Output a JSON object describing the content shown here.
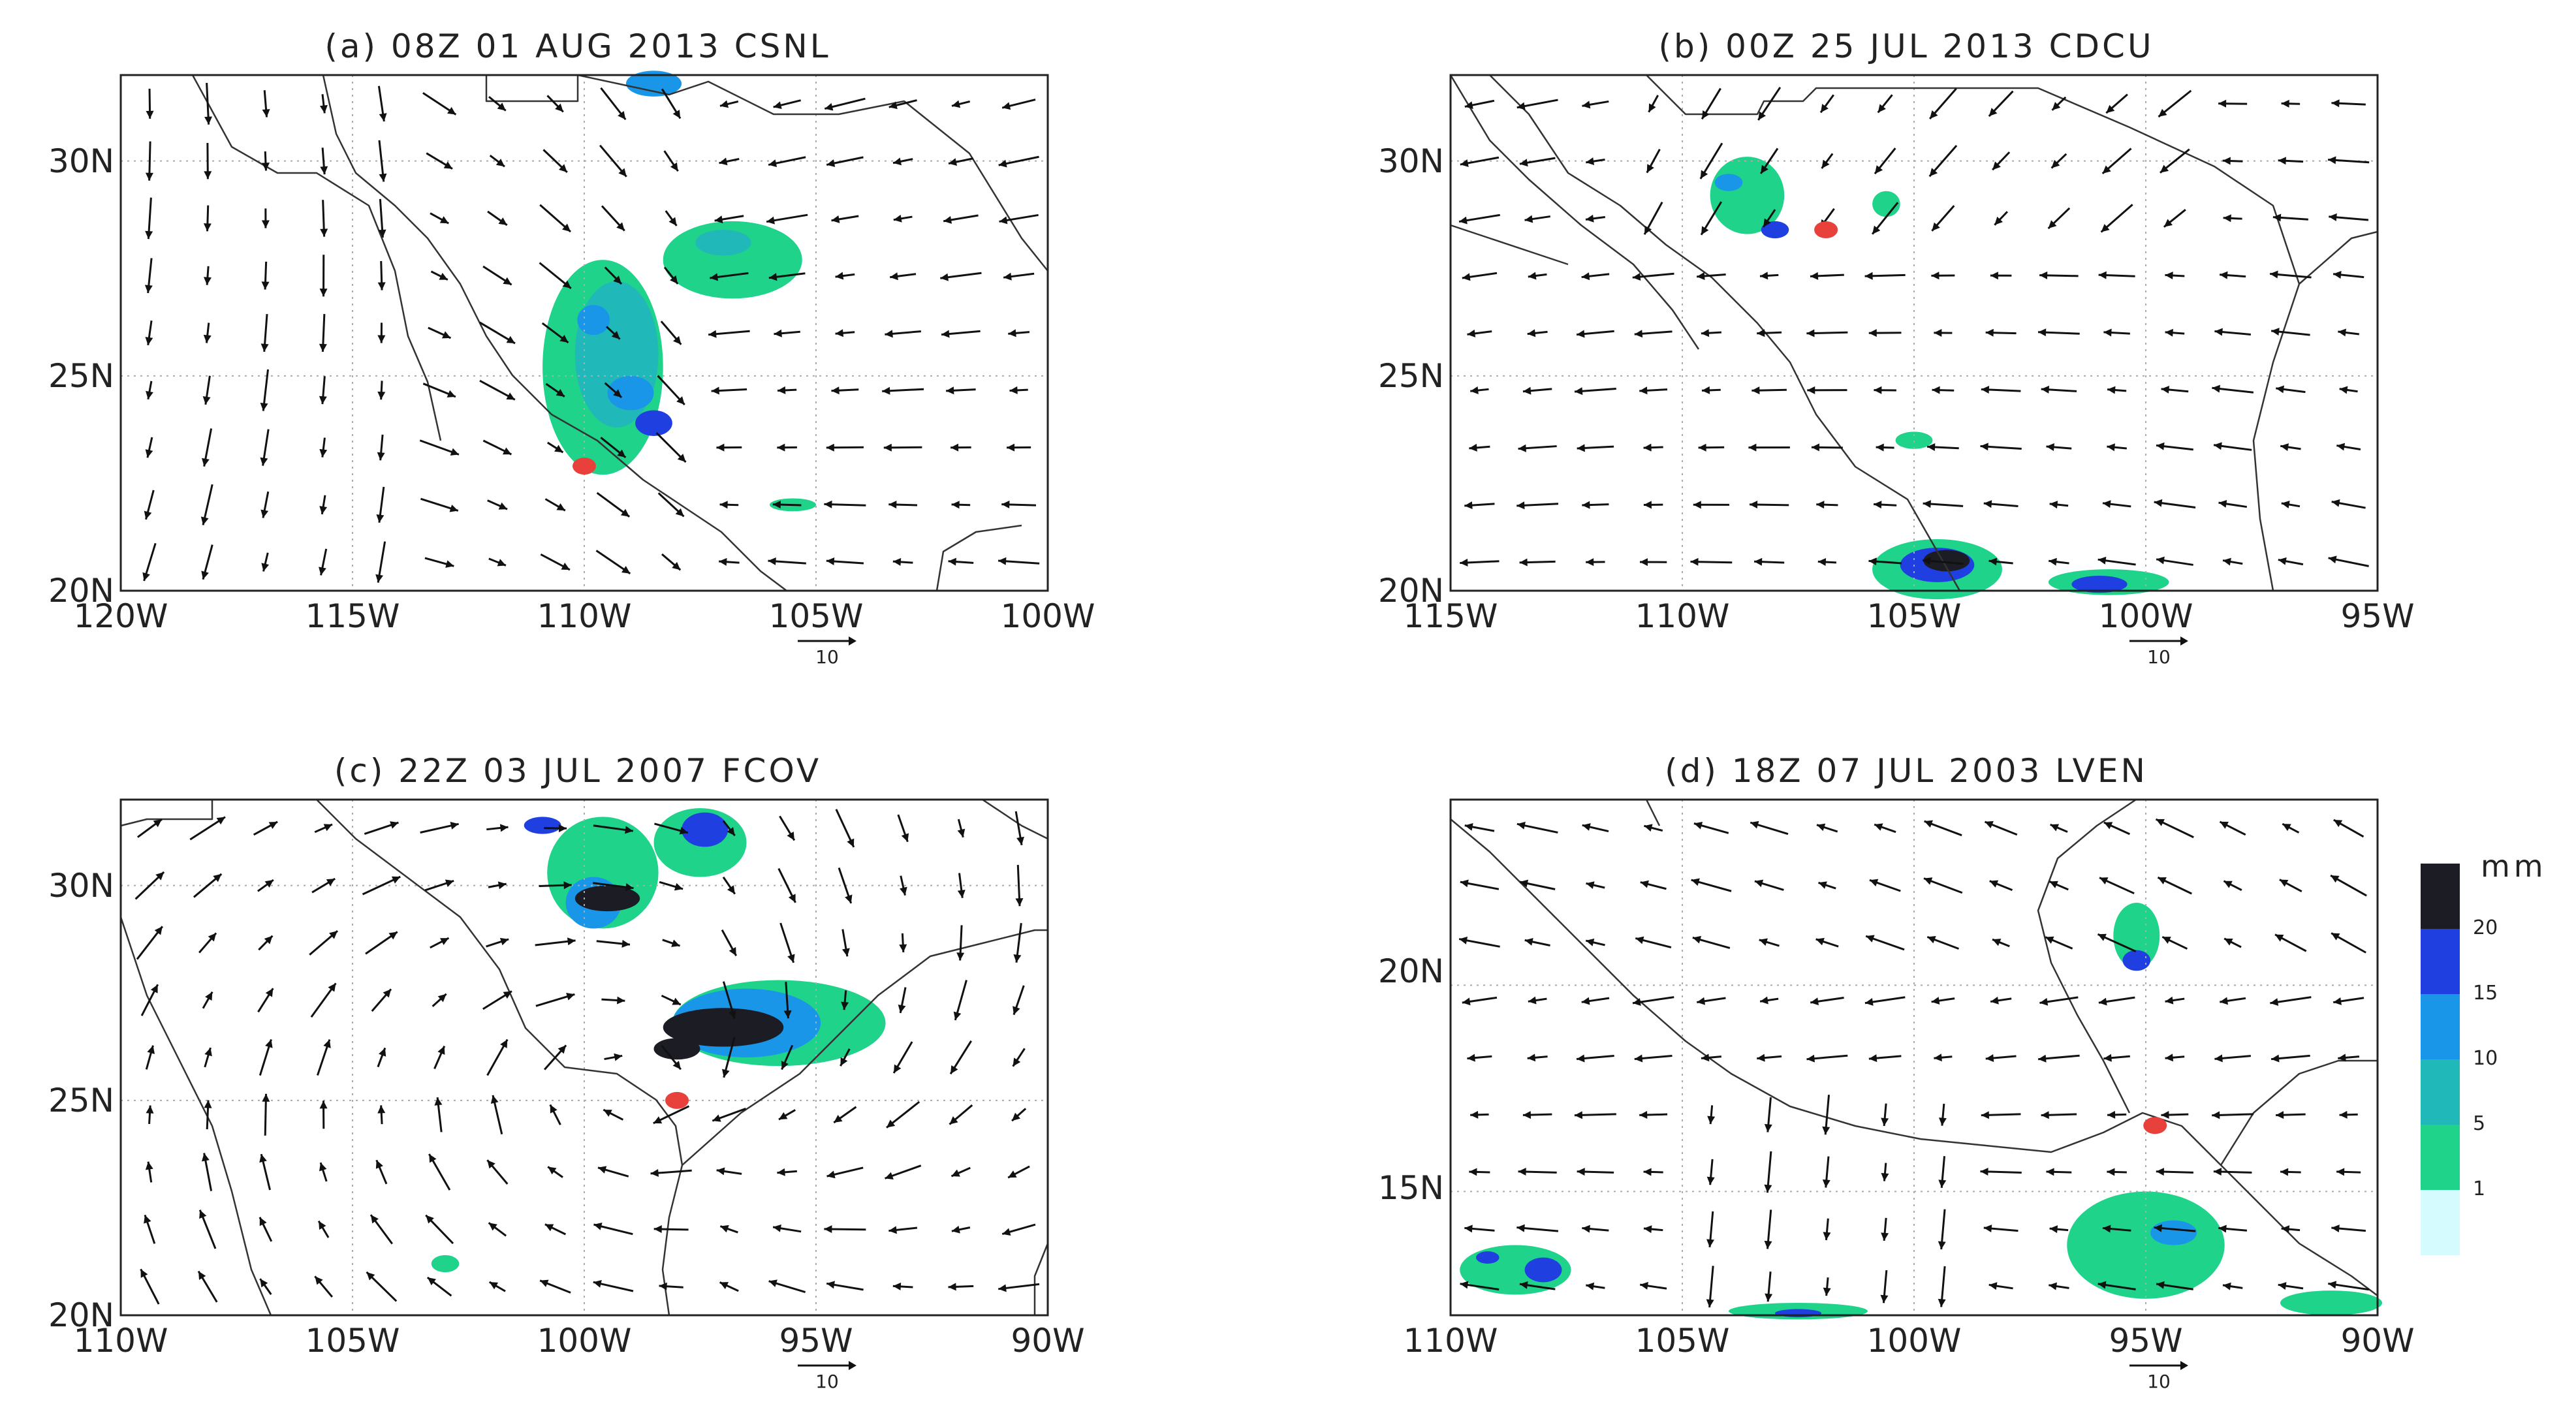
{
  "panels": [
    {
      "id": "a",
      "title": "(a) 08Z 01 AUG 2013 CSNL",
      "lon_range": [
        -120,
        -100
      ],
      "lat_range": [
        20,
        32
      ],
      "x_ticks": [
        "120W",
        "115W",
        "110W",
        "105W",
        "100W"
      ],
      "y_ticks": [
        "30N",
        "25N",
        "20N"
      ],
      "ref_vector_label": "10",
      "event_marker": {
        "lon": -110.0,
        "lat": 22.9
      },
      "precip_blobs": [
        {
          "lon": -109.6,
          "lat": 25.2,
          "rlon": 1.3,
          "rlat": 2.5,
          "level": "1-5"
        },
        {
          "lon": -109.3,
          "lat": 25.5,
          "rlon": 0.9,
          "rlat": 1.7,
          "level": "5-10"
        },
        {
          "lon": -109.8,
          "lat": 26.3,
          "rlon": 0.35,
          "rlat": 0.35,
          "level": "10-15"
        },
        {
          "lon": -109.0,
          "lat": 24.6,
          "rlon": 0.5,
          "rlat": 0.4,
          "level": "10-15"
        },
        {
          "lon": -108.5,
          "lat": 23.9,
          "rlon": 0.4,
          "rlat": 0.3,
          "level": "15-20"
        },
        {
          "lon": -106.8,
          "lat": 27.7,
          "rlon": 1.5,
          "rlat": 0.9,
          "level": "1-5"
        },
        {
          "lon": -107.0,
          "lat": 28.1,
          "rlon": 0.6,
          "rlat": 0.3,
          "level": "5-10"
        },
        {
          "lon": -108.5,
          "lat": 31.8,
          "rlon": 0.6,
          "rlat": 0.3,
          "level": "10-15"
        },
        {
          "lon": -105.5,
          "lat": 22.0,
          "rlon": 0.5,
          "rlat": 0.15,
          "level": "1-5"
        }
      ]
    },
    {
      "id": "b",
      "title": "(b) 00Z 25 JUL 2013 CDCU",
      "lon_range": [
        -115,
        -95
      ],
      "lat_range": [
        20,
        32
      ],
      "x_ticks": [
        "115W",
        "110W",
        "105W",
        "100W",
        "95W"
      ],
      "y_ticks": [
        "30N",
        "25N",
        "20N"
      ],
      "ref_vector_label": "10",
      "event_marker": {
        "lon": -106.9,
        "lat": 28.4
      },
      "precip_blobs": [
        {
          "lon": -108.6,
          "lat": 29.2,
          "rlon": 0.8,
          "rlat": 0.9,
          "level": "1-5"
        },
        {
          "lon": -109.0,
          "lat": 29.5,
          "rlon": 0.3,
          "rlat": 0.2,
          "level": "10-15"
        },
        {
          "lon": -108.0,
          "lat": 28.4,
          "rlon": 0.3,
          "rlat": 0.2,
          "level": "15-20"
        },
        {
          "lon": -105.6,
          "lat": 29.0,
          "rlon": 0.3,
          "rlat": 0.3,
          "level": "1-5"
        },
        {
          "lon": -105.0,
          "lat": 23.5,
          "rlon": 0.4,
          "rlat": 0.2,
          "level": "1-5"
        },
        {
          "lon": -104.5,
          "lat": 20.5,
          "rlon": 1.4,
          "rlat": 0.7,
          "level": "1-5"
        },
        {
          "lon": -104.5,
          "lat": 20.6,
          "rlon": 0.8,
          "rlat": 0.4,
          "level": "15-20"
        },
        {
          "lon": -104.3,
          "lat": 20.7,
          "rlon": 0.5,
          "rlat": 0.25,
          "level": ">20"
        },
        {
          "lon": -100.8,
          "lat": 20.2,
          "rlon": 1.3,
          "rlat": 0.3,
          "level": "1-5"
        },
        {
          "lon": -101.0,
          "lat": 20.15,
          "rlon": 0.6,
          "rlat": 0.2,
          "level": "15-20"
        }
      ]
    },
    {
      "id": "c",
      "title": "(c) 22Z 03 JUL 2007 FCOV",
      "lon_range": [
        -110,
        -90
      ],
      "lat_range": [
        20,
        32
      ],
      "x_ticks": [
        "110W",
        "105W",
        "100W",
        "95W",
        "90W"
      ],
      "y_ticks": [
        "30N",
        "25N",
        "20N"
      ],
      "ref_vector_label": "10",
      "event_marker": {
        "lon": -98.0,
        "lat": 25.0
      },
      "precip_blobs": [
        {
          "lon": -99.6,
          "lat": 30.3,
          "rlon": 1.2,
          "rlat": 1.3,
          "level": "1-5"
        },
        {
          "lon": -99.8,
          "lat": 29.6,
          "rlon": 0.6,
          "rlat": 0.6,
          "level": "10-15"
        },
        {
          "lon": -99.5,
          "lat": 29.7,
          "rlon": 0.7,
          "rlat": 0.3,
          "level": ">20"
        },
        {
          "lon": -100.9,
          "lat": 31.4,
          "rlon": 0.4,
          "rlat": 0.2,
          "level": "15-20"
        },
        {
          "lon": -97.5,
          "lat": 31.0,
          "rlon": 1.0,
          "rlat": 0.8,
          "level": "1-5"
        },
        {
          "lon": -97.4,
          "lat": 31.3,
          "rlon": 0.5,
          "rlat": 0.4,
          "level": "15-20"
        },
        {
          "lon": -95.8,
          "lat": 26.8,
          "rlon": 2.3,
          "rlat": 1.0,
          "level": "1-5"
        },
        {
          "lon": -96.5,
          "lat": 26.8,
          "rlon": 1.6,
          "rlat": 0.8,
          "level": "10-15"
        },
        {
          "lon": -97.0,
          "lat": 26.7,
          "rlon": 1.3,
          "rlat": 0.45,
          "level": ">20"
        },
        {
          "lon": -98.0,
          "lat": 26.2,
          "rlon": 0.5,
          "rlat": 0.25,
          "level": ">20"
        },
        {
          "lon": -103.0,
          "lat": 21.2,
          "rlon": 0.3,
          "rlat": 0.2,
          "level": "1-5"
        }
      ]
    },
    {
      "id": "d",
      "title": "(d) 18Z 07 JUL 2003 LVEN",
      "lon_range": [
        -110,
        -90
      ],
      "lat_range": [
        12,
        24.5
      ],
      "x_ticks": [
        "110W",
        "105W",
        "100W",
        "95W",
        "90W"
      ],
      "y_ticks": [
        "20N",
        "15N"
      ],
      "ref_vector_label": "10",
      "event_marker": {
        "lon": -94.8,
        "lat": 16.6
      },
      "precip_blobs": [
        {
          "lon": -108.6,
          "lat": 13.1,
          "rlon": 1.2,
          "rlat": 0.6,
          "level": "1-5"
        },
        {
          "lon": -108.0,
          "lat": 13.1,
          "rlon": 0.4,
          "rlat": 0.3,
          "level": "15-20"
        },
        {
          "lon": -109.2,
          "lat": 13.4,
          "rlon": 0.25,
          "rlat": 0.15,
          "level": "15-20"
        },
        {
          "lon": -95.2,
          "lat": 21.2,
          "rlon": 0.5,
          "rlat": 0.8,
          "level": "1-5"
        },
        {
          "lon": -95.2,
          "lat": 20.6,
          "rlon": 0.3,
          "rlat": 0.25,
          "level": "15-20"
        },
        {
          "lon": -95.0,
          "lat": 13.7,
          "rlon": 1.7,
          "rlat": 1.3,
          "level": "1-5"
        },
        {
          "lon": -94.4,
          "lat": 14.0,
          "rlon": 0.5,
          "rlat": 0.3,
          "level": "10-15"
        },
        {
          "lon": -102.5,
          "lat": 12.1,
          "rlon": 1.5,
          "rlat": 0.2,
          "level": "1-5"
        },
        {
          "lon": -102.5,
          "lat": 12.05,
          "rlon": 0.5,
          "rlat": 0.1,
          "level": "15-20"
        },
        {
          "lon": -91.0,
          "lat": 12.3,
          "rlon": 1.1,
          "rlat": 0.3,
          "level": "1-5"
        }
      ]
    }
  ],
  "colorbar": {
    "unit": "mm",
    "ticks": [
      "20",
      "15",
      "10",
      "5",
      "1"
    ],
    "levels": [
      {
        "range": "0-1",
        "color": "#d6fbff"
      },
      {
        "range": "1-5",
        "color": "#1fd38a"
      },
      {
        "range": "5-10",
        "color": "#20b8b8"
      },
      {
        "range": "10-15",
        "color": "#1a96e8"
      },
      {
        "range": "15-20",
        "color": "#1f3fe0"
      },
      {
        "range": ">20",
        "color": "#1c1c24"
      }
    ]
  },
  "colors": {
    "marker": "#e8403a",
    "coast": "#333333",
    "grid": "#aaaaaa",
    "arrow": "#111111"
  }
}
